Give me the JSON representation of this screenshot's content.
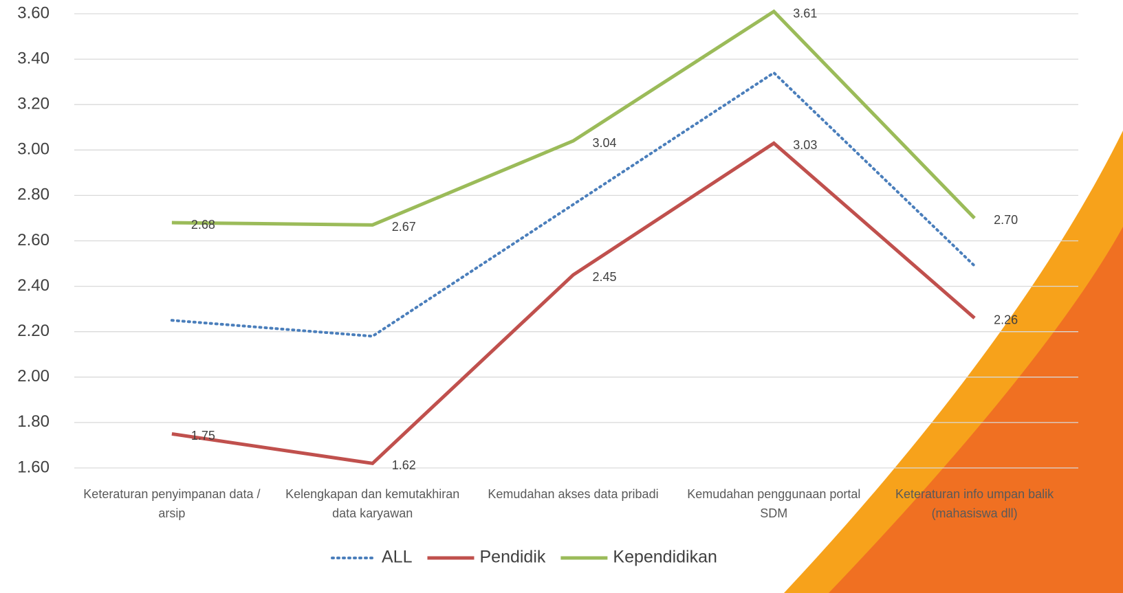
{
  "chart_data": {
    "type": "line",
    "categories": [
      "Keteraturan penyimpanan data / arsip",
      "Kelengkapan dan kemutakhiran data karyawan",
      "Kemudahan akses data pribadi",
      "Kemudahan penggunaan portal SDM",
      "Keteraturan info  umpan balik (mahasiswa dll)"
    ],
    "series": [
      {
        "name": "ALL",
        "color": "#4a7ebb",
        "line_style": "dotted",
        "values": [
          2.25,
          2.18,
          2.76,
          3.34,
          2.49
        ]
      },
      {
        "name": "Pendidik",
        "color": "#c0504d",
        "line_style": "solid",
        "values": [
          1.75,
          1.62,
          2.45,
          3.03,
          2.26
        ],
        "value_labels": [
          "1.75",
          "1.62",
          "2.45",
          "3.03",
          "2.26"
        ]
      },
      {
        "name": "Kependidikan",
        "color": "#9bbb59",
        "line_style": "solid",
        "values": [
          2.68,
          2.67,
          3.04,
          3.61,
          2.7
        ],
        "value_labels": [
          "2.68",
          "2.67",
          "3.04",
          "3.61",
          "2.70"
        ]
      }
    ],
    "ylim": [
      1.6,
      3.6
    ],
    "yticks": [
      {
        "value": 1.6,
        "label": "1.60"
      },
      {
        "value": 1.8,
        "label": "1.80"
      },
      {
        "value": 2.0,
        "label": "2.00"
      },
      {
        "value": 2.2,
        "label": "2.20"
      },
      {
        "value": 2.4,
        "label": "2.40"
      },
      {
        "value": 2.6,
        "label": "2.60"
      },
      {
        "value": 2.8,
        "label": "2.80"
      },
      {
        "value": 3.0,
        "label": "3.00"
      },
      {
        "value": 3.2,
        "label": "3.20"
      },
      {
        "value": 3.4,
        "label": "3.40"
      },
      {
        "value": 3.6,
        "label": "3.60"
      }
    ],
    "grid": true,
    "legend": "bottom"
  }
}
